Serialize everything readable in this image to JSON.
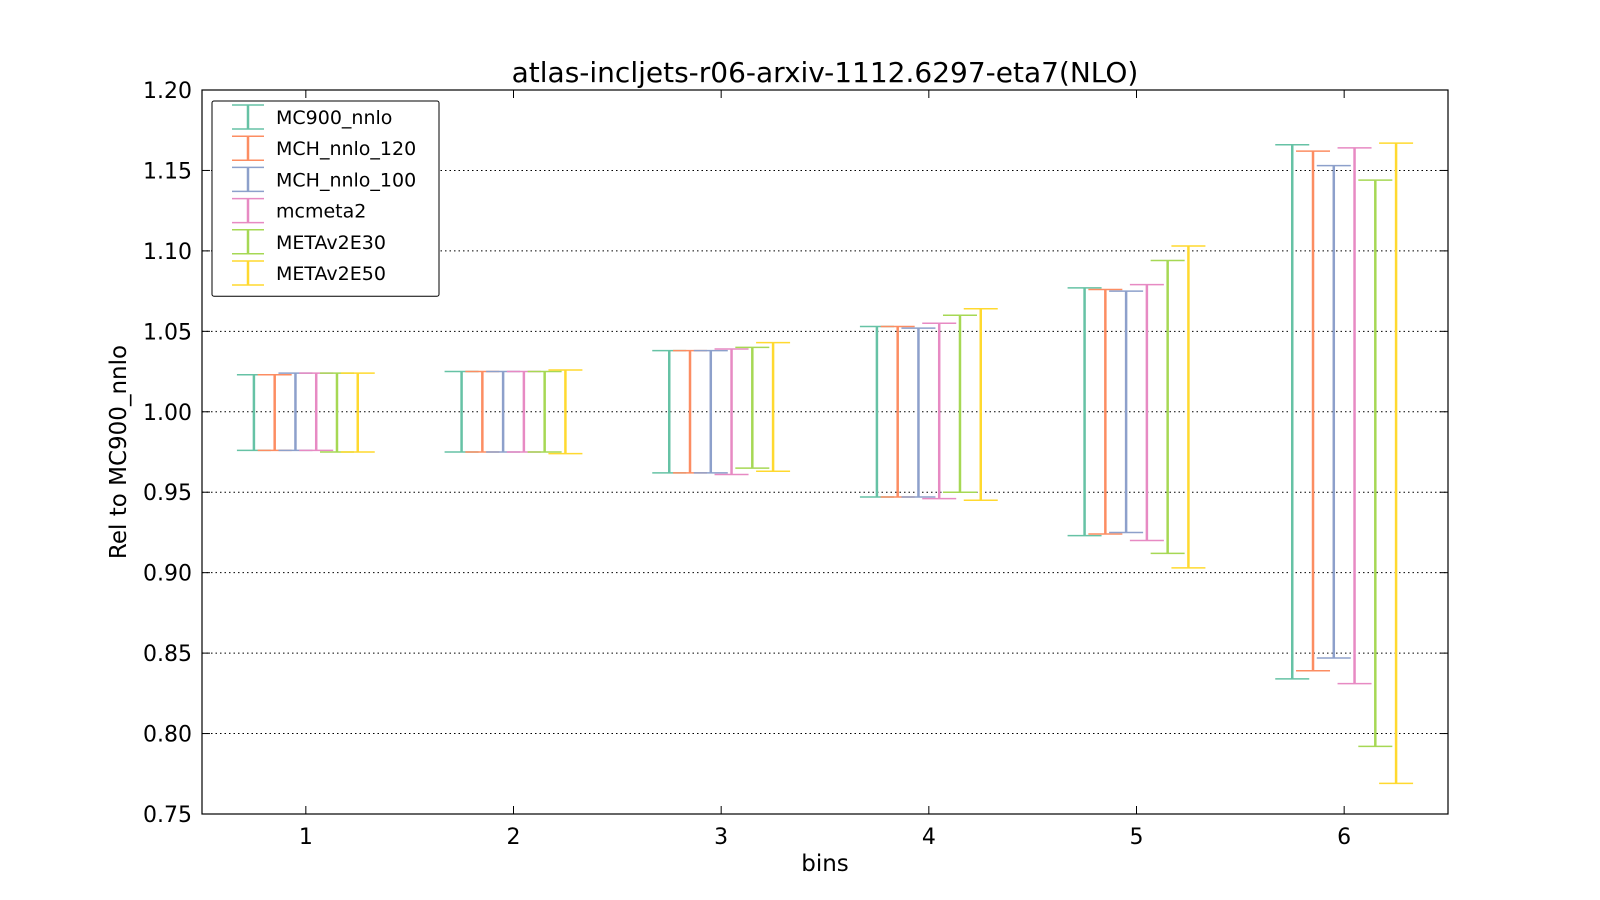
{
  "chart_data": {
    "type": "errorbar",
    "title": "atlas-incljets-r06-arxiv-1112.6297-eta7(NLO)",
    "xlabel": "bins",
    "ylabel": "Rel to MC900_nnlo",
    "xlim": [
      0.5,
      6.5
    ],
    "ylim": [
      0.75,
      1.2
    ],
    "x_ticks": [
      1,
      2,
      3,
      4,
      5,
      6
    ],
    "x_tick_labels": [
      "1",
      "2",
      "3",
      "4",
      "5",
      "6"
    ],
    "y_ticks": [
      0.75,
      0.8,
      0.85,
      0.9,
      0.95,
      1.0,
      1.05,
      1.1,
      1.15,
      1.2
    ],
    "y_tick_labels": [
      "0.75",
      "0.80",
      "0.85",
      "0.90",
      "0.95",
      "1.00",
      "1.05",
      "1.10",
      "1.15",
      "1.20"
    ],
    "grid": "horizontal dotted",
    "legend_position": "top-left",
    "categories": [
      1,
      2,
      3,
      4,
      5,
      6
    ],
    "series": [
      {
        "name": "MC900_nnlo",
        "color": "#66c2a5",
        "low": [
          0.976,
          0.975,
          0.962,
          0.947,
          0.923,
          0.834
        ],
        "high": [
          1.023,
          1.025,
          1.038,
          1.053,
          1.077,
          1.166
        ]
      },
      {
        "name": "MCH_nnlo_120",
        "color": "#fc8d62",
        "low": [
          0.976,
          0.975,
          0.962,
          0.947,
          0.924,
          0.839
        ],
        "high": [
          1.023,
          1.025,
          1.038,
          1.053,
          1.076,
          1.162
        ]
      },
      {
        "name": "MCH_nnlo_100",
        "color": "#8da0cb",
        "low": [
          0.976,
          0.975,
          0.962,
          0.947,
          0.925,
          0.847
        ],
        "high": [
          1.024,
          1.025,
          1.038,
          1.052,
          1.075,
          1.153
        ]
      },
      {
        "name": "mcmeta2",
        "color": "#e78ac3",
        "low": [
          0.976,
          0.975,
          0.961,
          0.946,
          0.92,
          0.831
        ],
        "high": [
          1.024,
          1.025,
          1.039,
          1.055,
          1.079,
          1.164
        ]
      },
      {
        "name": "METAv2E30",
        "color": "#a6d854",
        "low": [
          0.975,
          0.975,
          0.965,
          0.95,
          0.912,
          0.792
        ],
        "high": [
          1.024,
          1.025,
          1.04,
          1.06,
          1.094,
          1.144
        ]
      },
      {
        "name": "METAv2E50",
        "color": "#ffd92f",
        "low": [
          0.975,
          0.974,
          0.963,
          0.945,
          0.903,
          0.769
        ],
        "high": [
          1.024,
          1.026,
          1.043,
          1.064,
          1.103,
          1.167
        ]
      }
    ]
  }
}
